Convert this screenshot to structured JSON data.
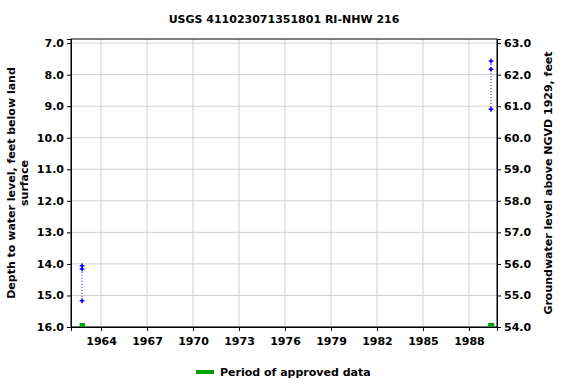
{
  "chart_data": {
    "type": "line",
    "title": "USGS 411023071351801 RI-NHW  216",
    "ylabel": [
      "Depth to water level, feet below land",
      "surface"
    ],
    "y2label": "Groundwater level above NGVD 1929, feet",
    "x": [
      1962.76,
      1962.76,
      1962.76,
      null,
      1989.44,
      1989.44,
      1989.44
    ],
    "series": [
      {
        "color": "#0000ff",
        "marker": "plus",
        "line_style": "dotted",
        "values": [
          14.06,
          14.16,
          15.17,
          null,
          7.57,
          7.83,
          9.1
        ]
      }
    ],
    "xlim": [
      1962.04,
      1989.83
    ],
    "xticks": [
      1964,
      1967,
      1970,
      1973,
      1976,
      1979,
      1982,
      1985,
      1988
    ],
    "ylim": [
      6.87,
      16.0
    ],
    "yticks": [
      {
        "value": 7,
        "label": "7.0"
      },
      {
        "value": 8,
        "label": "8.0"
      },
      {
        "value": 9,
        "label": "9.0"
      },
      {
        "value": 10,
        "label": "10.0"
      },
      {
        "value": 11,
        "label": "11.0"
      },
      {
        "value": 12,
        "label": "12.0"
      },
      {
        "value": 13,
        "label": "13.0"
      },
      {
        "value": 14,
        "label": "14.0"
      },
      {
        "value": 15,
        "label": "15.0"
      },
      {
        "value": 16,
        "label": "16.0"
      }
    ],
    "y2lim": [
      63.13,
      54.0
    ],
    "y2ticks": [
      {
        "value": 63,
        "label": "63.0"
      },
      {
        "value": 62,
        "label": "62.0"
      },
      {
        "value": 61,
        "label": "61.0"
      },
      {
        "value": 60,
        "label": "60.0"
      },
      {
        "value": 59,
        "label": "59.0"
      },
      {
        "value": 58,
        "label": "58.0"
      },
      {
        "value": 57,
        "label": "57.0"
      },
      {
        "value": 56,
        "label": "56.0"
      },
      {
        "value": 55,
        "label": "55.0"
      },
      {
        "value": 54,
        "label": "54.0"
      }
    ],
    "grid": true,
    "approved_periods": [
      [
        1962.6,
        1962.95
      ],
      [
        1989.25,
        1989.65
      ]
    ],
    "approved_label": "Period of approved data",
    "approved_color": "#00a000",
    "legend": "bottom"
  }
}
